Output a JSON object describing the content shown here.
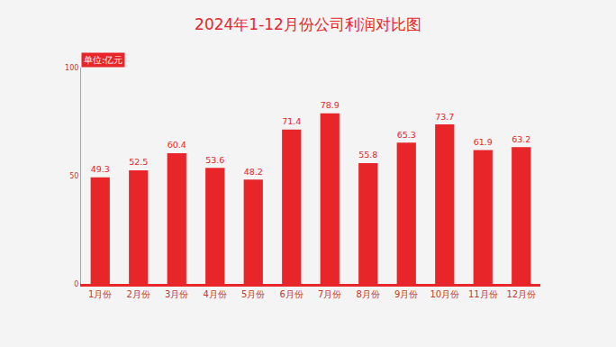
{
  "chart_data": {
    "type": "bar",
    "title": "2024年1-12月份公司利润对比图",
    "ylabel": "单位:亿元",
    "categories": [
      "1月份",
      "2月份",
      "3月份",
      "4月份",
      "5月份",
      "6月份",
      "7月份",
      "8月份",
      "9月份",
      "10月份",
      "11月份",
      "12月份"
    ],
    "values": [
      49.3,
      52.5,
      60.4,
      53.6,
      48.2,
      71.4,
      78.9,
      55.8,
      65.3,
      73.7,
      61.9,
      63.2
    ],
    "color": "#e8262a",
    "ylim": [
      0,
      100
    ],
    "yticks": [
      0,
      50,
      100
    ],
    "grid": false,
    "data_labels": true
  }
}
